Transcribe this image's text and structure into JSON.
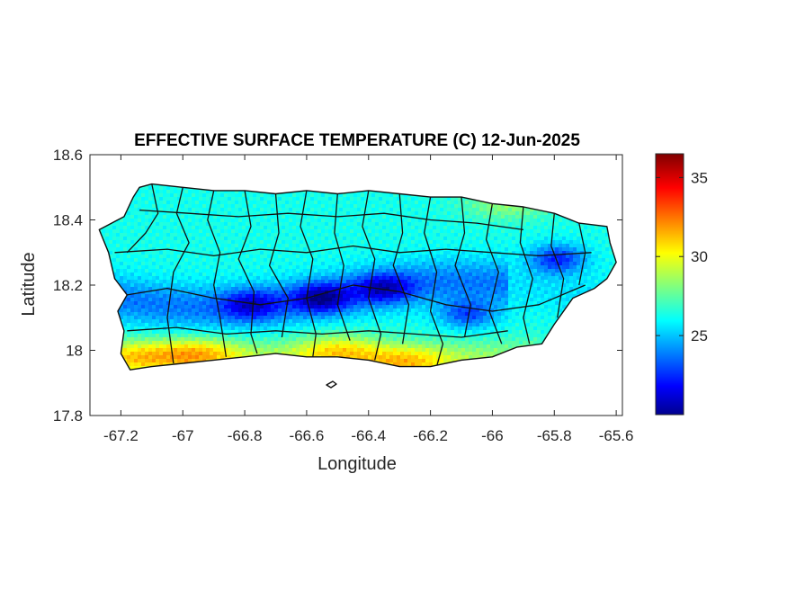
{
  "chart_data": {
    "type": "heatmap",
    "title": "EFFECTIVE SURFACE TEMPERATURE (C) 12-Jun-2025",
    "xlabel": "Longitude",
    "ylabel": "Latitude",
    "xlim": [
      -67.3,
      -65.58
    ],
    "ylim": [
      17.8,
      18.6
    ],
    "xticks": [
      -67.2,
      -67,
      -66.8,
      -66.6,
      -66.4,
      -66.2,
      -66,
      -65.8,
      -65.6
    ],
    "yticks": [
      17.8,
      18,
      18.2,
      18.4,
      18.6
    ],
    "xtick_labels": [
      "-67.2",
      "-67",
      "-66.8",
      "-66.6",
      "-66.4",
      "-66.2",
      "-66",
      "-65.8",
      "-65.6"
    ],
    "ytick_labels": [
      "17.8",
      "18",
      "18.2",
      "18.4",
      "18.6"
    ],
    "colorbar": {
      "colormap": "jet",
      "range": [
        20,
        36.5
      ],
      "ticks": [
        25,
        30,
        35
      ],
      "tick_labels": [
        "25",
        "30",
        "35"
      ]
    },
    "field": {
      "description_values": "surface temperature in degrees C over Puerto Rico",
      "cool_core": [
        {
          "lon": -66.55,
          "lat": 18.16,
          "value": 20.5
        },
        {
          "lon": -66.78,
          "lat": 18.14,
          "value": 22.0
        },
        {
          "lon": -66.35,
          "lat": 18.19,
          "value": 21.5
        },
        {
          "lon": -66.08,
          "lat": 18.11,
          "value": 22.0
        },
        {
          "lon": -65.79,
          "lat": 18.28,
          "value": 21.0
        }
      ],
      "warm_zones": [
        {
          "lon": -66.95,
          "lat": 17.99,
          "value": 30.5
        },
        {
          "lon": -66.5,
          "lat": 18.0,
          "value": 30.0
        },
        {
          "lon": -66.28,
          "lat": 17.96,
          "value": 30.0
        },
        {
          "lon": -67.15,
          "lat": 17.98,
          "value": 29.5
        },
        {
          "lon": -65.95,
          "lat": 18.45,
          "value": 29.0
        }
      ]
    }
  }
}
